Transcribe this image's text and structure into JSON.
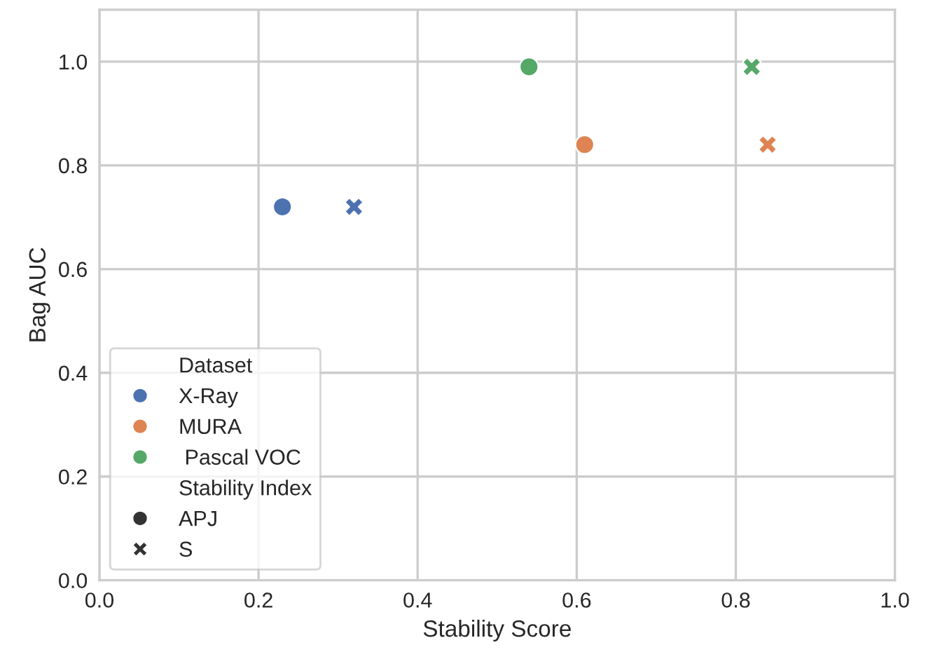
{
  "chart_data": {
    "type": "scatter",
    "xlabel": "Stability Score",
    "ylabel": "Bag AUC",
    "xlim": [
      0.0,
      1.0
    ],
    "xticks": [
      {
        "value": 0,
        "label": "0.0"
      },
      0.2,
      0.4,
      0.6,
      0.8,
      {
        "value": 1,
        "label": "1.0"
      }
    ],
    "ylim": [
      0.0,
      1.1
    ],
    "yticks": [
      {
        "value": 0,
        "label": "0.0"
      },
      0.2,
      0.4,
      0.6,
      0.8,
      {
        "value": 1,
        "label": "1.0"
      }
    ],
    "grid": true,
    "legend": "bottom left",
    "legend_title": [
      "Dataset",
      "Stability Index"
    ],
    "annotations": [
      "APJ",
      "S"
    ],
    "series": [
      {
        "name": "X-Ray",
        "color": "#4c72b0",
        "marker": "circle",
        "x": [
          0.23
        ],
        "values": [
          0.72
        ]
      },
      {
        "color": "#4c72b0",
        "marker": "cross",
        "x": [
          0.32
        ],
        "values": [
          0.72
        ]
      },
      {
        "name": "MURA",
        "color": "#dd8452",
        "marker": "circle",
        "x": [
          0.61
        ],
        "values": [
          0.84
        ]
      },
      {
        "color": "#dd8452",
        "marker": "cross",
        "x": [
          0.84
        ],
        "values": [
          0.84
        ]
      },
      {
        "name": " Pascal VOC",
        "color": "#55a868",
        "marker": "circle",
        "x": [
          0.54
        ],
        "values": [
          0.99
        ]
      },
      {
        "color": "#55a868",
        "marker": "cross",
        "x": [
          0.82
        ],
        "values": [
          0.99
        ]
      }
    ]
  }
}
